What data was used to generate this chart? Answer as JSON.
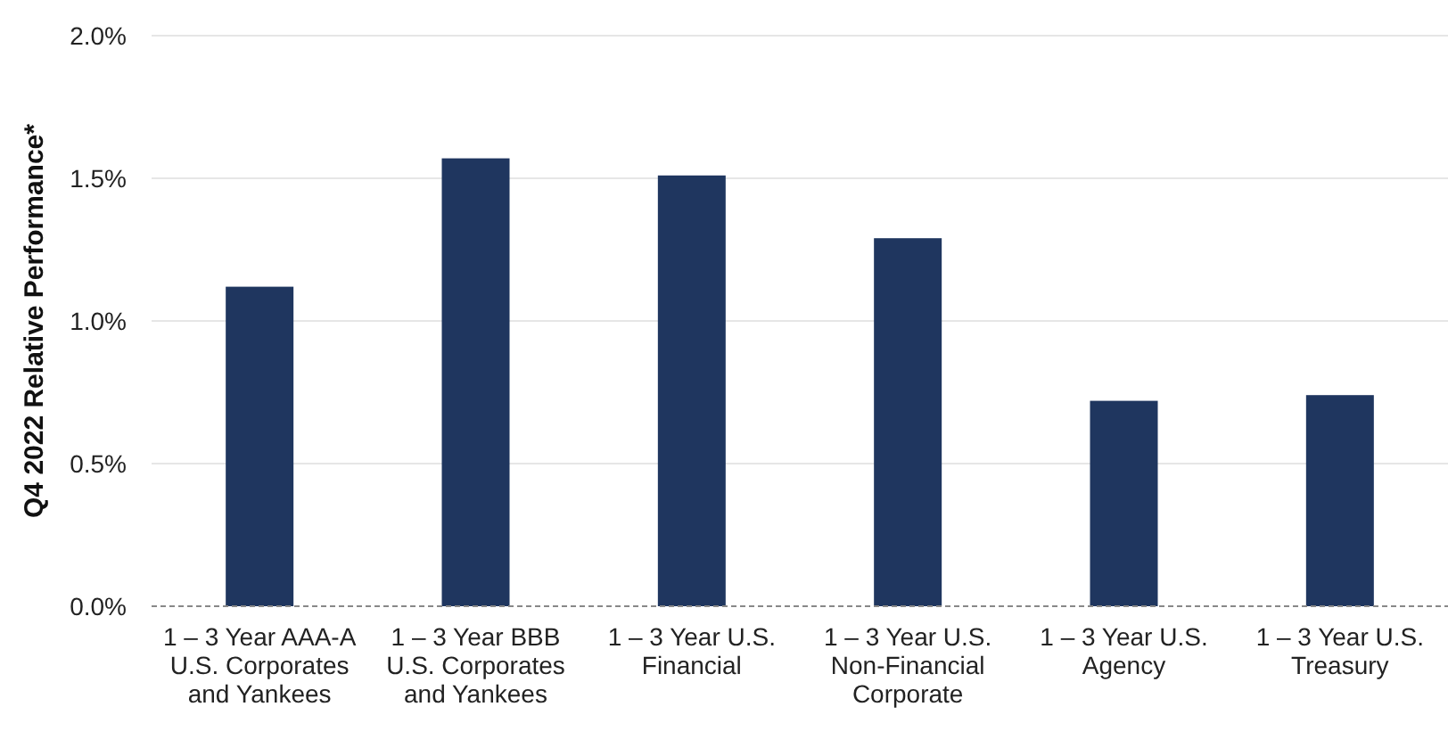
{
  "chart_data": {
    "type": "bar",
    "ylabel": "Q4 2022 Relative Performance*",
    "categories": [
      "1 – 3 Year AAA-A U.S. Corporates and Yankees",
      "1 – 3 Year BBB U.S. Corporates and Yankees",
      "1 – 3 Year U.S. Financial",
      "1 – 3 Year U.S. Non-Financial Corporate",
      "1 – 3 Year U.S. Agency",
      "1 – 3 Year U.S. Treasury"
    ],
    "values": [
      1.12,
      1.57,
      1.51,
      1.29,
      0.72,
      0.74
    ],
    "color": "#1f365f",
    "ylim": [
      0,
      2
    ],
    "yticks": [
      {
        "value": 0,
        "label": "0.0%"
      },
      {
        "value": 0.5,
        "label": "0.5%"
      },
      {
        "value": 1,
        "label": "1.0%"
      },
      {
        "value": 1.5,
        "label": "1.5%"
      },
      {
        "value": 2,
        "label": "2.0%"
      }
    ],
    "grid": "y"
  }
}
